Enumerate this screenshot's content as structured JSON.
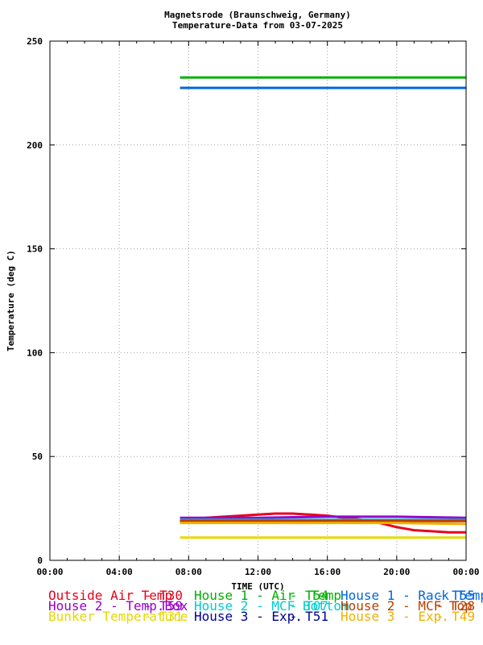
{
  "chart_data": {
    "type": "line",
    "title": "Magnetsrode (Braunschweig, Germany)",
    "subtitle": "Temperature-Data from 03-07-2025",
    "xlabel": "TIME (UTC)",
    "ylabel": "Temperature (deg C)",
    "xlim": [
      0,
      24
    ],
    "ylim": [
      0,
      250
    ],
    "x_ticks": [
      "00:00",
      "04:00",
      "08:00",
      "12:00",
      "16:00",
      "20:00",
      "00:00"
    ],
    "y_ticks": [
      "0",
      "50",
      "100",
      "150",
      "200",
      "250"
    ],
    "grid": true,
    "legend_position": "bottom",
    "series": [
      {
        "name": "Outside Air Temp",
        "code": "T30",
        "color": "#e8001c",
        "x": [
          7.5,
          9,
          10,
          11,
          12,
          13,
          14,
          15,
          16,
          17,
          18,
          19,
          19.5,
          20,
          21,
          22,
          23,
          24
        ],
        "y": [
          18.5,
          20.5,
          21.0,
          21.5,
          22.0,
          22.5,
          22.5,
          22.0,
          21.5,
          20.5,
          19.5,
          18.0,
          17.0,
          16.0,
          14.5,
          14.0,
          13.5,
          13.5
        ]
      },
      {
        "name": "House 2 - Temp.Box",
        "code": "T59",
        "color": "#9900cc",
        "x": [
          7.5,
          12,
          16,
          20,
          24
        ],
        "y": [
          20.5,
          20.5,
          21.0,
          21.0,
          20.5
        ]
      },
      {
        "name": "Bunker Temperature",
        "code": "T31",
        "color": "#e6d800",
        "x": [
          7.5,
          24
        ],
        "y": [
          11.0,
          11.0
        ]
      },
      {
        "name": "House 1 - Air  Temp",
        "code": "T54",
        "color": "#00b000",
        "x": [
          7.5,
          24
        ],
        "y": [
          232.5,
          232.5
        ]
      },
      {
        "name": "House 2 - MCF Bottom",
        "code": "T07",
        "color": "#00cccc",
        "x": [
          7.5,
          24
        ],
        "y": [
          19.5,
          19.5
        ]
      },
      {
        "name": "House 3 - Exp.",
        "code": "T51",
        "color": "#000099",
        "x": [
          7.5,
          24
        ],
        "y": [
          19.0,
          19.0
        ]
      },
      {
        "name": "House 1 - Rack Temp",
        "code": "T55",
        "color": "#0066dd",
        "x": [
          7.5,
          24
        ],
        "y": [
          227.5,
          227.5
        ]
      },
      {
        "name": "House 2 - MCF Top",
        "code": "T28",
        "color": "#b84000",
        "x": [
          7.5,
          24
        ],
        "y": [
          19.0,
          19.0
        ]
      },
      {
        "name": "House 3 - Exp.",
        "code": "T49",
        "color": "#f0b000",
        "x": [
          7.5,
          12,
          16,
          20,
          24
        ],
        "y": [
          18.0,
          18.0,
          18.0,
          18.0,
          17.5
        ]
      }
    ]
  }
}
